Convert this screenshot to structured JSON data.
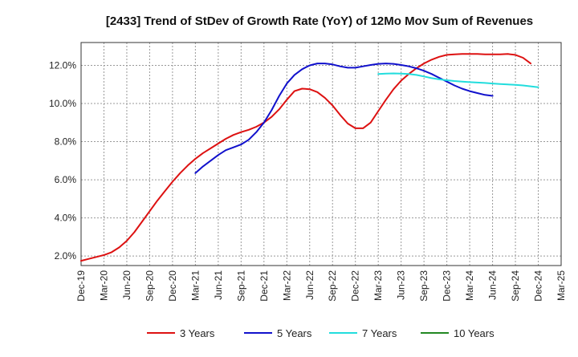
{
  "chart_data": {
    "type": "line",
    "title": "[2433]  Trend of StDev of Growth Rate (YoY) of 12Mo Mov Sum of Revenues",
    "xlabel": "",
    "ylabel": "",
    "ylim": [
      1.5,
      13.2
    ],
    "yticks": [
      2.0,
      4.0,
      6.0,
      8.0,
      10.0,
      12.0
    ],
    "ytick_labels": [
      "2.0%",
      "4.0%",
      "6.0%",
      "8.0%",
      "10.0%",
      "12.0%"
    ],
    "x_ticks": [
      "Dec-19",
      "Mar-20",
      "Jun-20",
      "Sep-20",
      "Dec-20",
      "Mar-21",
      "Jun-21",
      "Sep-21",
      "Dec-21",
      "Mar-22",
      "Jun-22",
      "Sep-22",
      "Dec-22",
      "Mar-23",
      "Jun-23",
      "Sep-23",
      "Dec-23",
      "Mar-24",
      "Jun-24",
      "Sep-24",
      "Dec-24",
      "Mar-25"
    ],
    "x_range_months": [
      0,
      63
    ],
    "grid": true,
    "legend_position": "bottom",
    "series": [
      {
        "name": "3 Years",
        "color": "#dd1111",
        "start_month": 0,
        "values": [
          1.75,
          1.85,
          1.95,
          2.05,
          2.2,
          2.45,
          2.8,
          3.25,
          3.8,
          4.35,
          4.9,
          5.4,
          5.9,
          6.35,
          6.75,
          7.1,
          7.4,
          7.65,
          7.9,
          8.15,
          8.35,
          8.5,
          8.62,
          8.78,
          9.0,
          9.3,
          9.7,
          10.2,
          10.65,
          10.78,
          10.75,
          10.6,
          10.3,
          9.9,
          9.4,
          8.95,
          8.7,
          8.7,
          9.0,
          9.6,
          10.2,
          10.75,
          11.2,
          11.55,
          11.85,
          12.1,
          12.3,
          12.45,
          12.55,
          12.58,
          12.6,
          12.6,
          12.6,
          12.58,
          12.58,
          12.58,
          12.6,
          12.55,
          12.4,
          12.1
        ]
      },
      {
        "name": "5 Years",
        "color": "#1111cc",
        "start_month": 15,
        "values": [
          6.35,
          6.7,
          7.0,
          7.3,
          7.55,
          7.7,
          7.85,
          8.1,
          8.5,
          9.0,
          9.65,
          10.4,
          11.05,
          11.5,
          11.8,
          12.0,
          12.1,
          12.1,
          12.05,
          11.95,
          11.88,
          11.88,
          11.95,
          12.02,
          12.08,
          12.1,
          12.08,
          12.02,
          11.95,
          11.85,
          11.72,
          11.55,
          11.35,
          11.15,
          10.95,
          10.78,
          10.65,
          10.55,
          10.45,
          10.4
        ]
      },
      {
        "name": "7 Years",
        "color": "#22dddd",
        "start_month": 39,
        "values": [
          11.55,
          11.57,
          11.58,
          11.57,
          11.55,
          11.5,
          11.42,
          11.33,
          11.27,
          11.22,
          11.18,
          11.15,
          11.12,
          11.1,
          11.08,
          11.05,
          11.02,
          11.0,
          10.98,
          10.95,
          10.9,
          10.85
        ]
      },
      {
        "name": "10 Years",
        "color": "#228822",
        "start_month": 0,
        "values": []
      }
    ]
  }
}
